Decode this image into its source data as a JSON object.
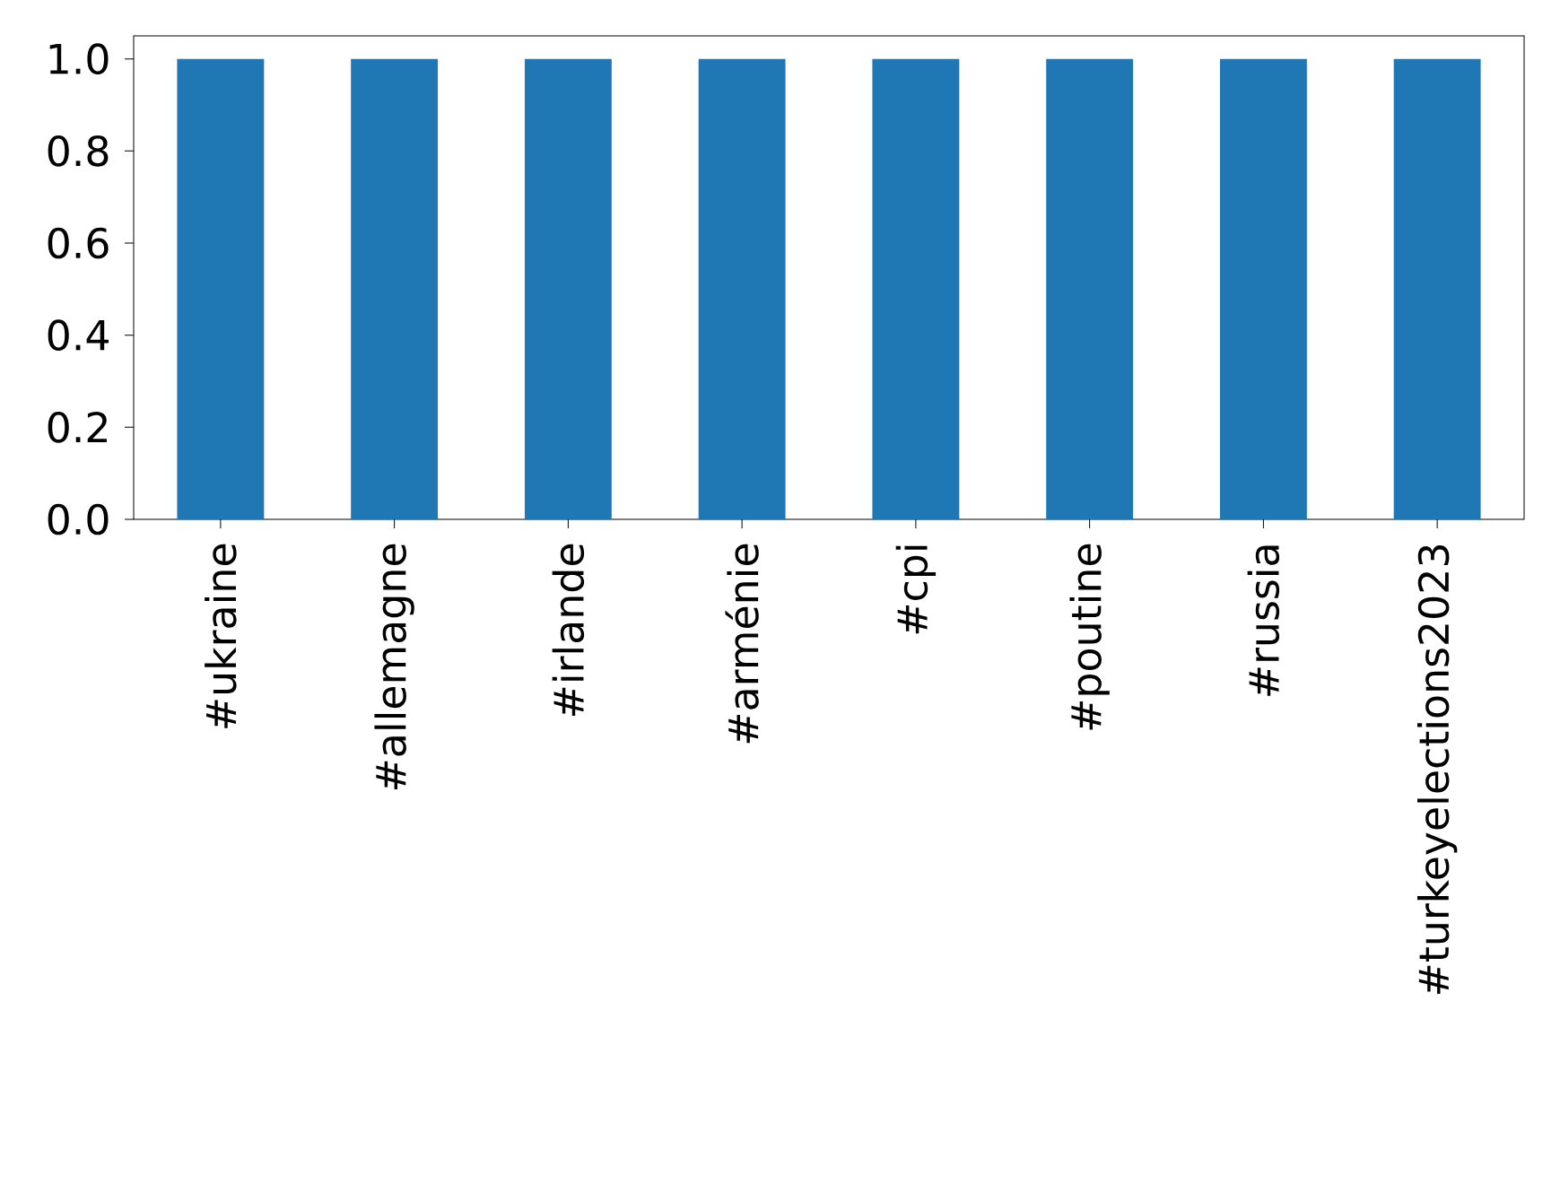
{
  "chart_data": {
    "type": "bar",
    "categories": [
      "#ukraine",
      "#allemagne",
      "#irlande",
      "#arménie",
      "#cpi",
      "#poutine",
      "#russia",
      "#turkeyelections2023"
    ],
    "values": [
      1.0,
      1.0,
      1.0,
      1.0,
      1.0,
      1.0,
      1.0,
      1.0
    ],
    "color": "#1f77b4",
    "ylim": [
      0,
      1.05
    ],
    "yticks": [
      {
        "value": 0,
        "label": "0.0"
      },
      {
        "value": 0.2,
        "label": "0.2"
      },
      {
        "value": 0.4,
        "label": "0.4"
      },
      {
        "value": 0.6,
        "label": "0.6"
      },
      {
        "value": 0.8,
        "label": "0.8"
      },
      {
        "value": 1.0,
        "label": "1.0"
      }
    ]
  }
}
